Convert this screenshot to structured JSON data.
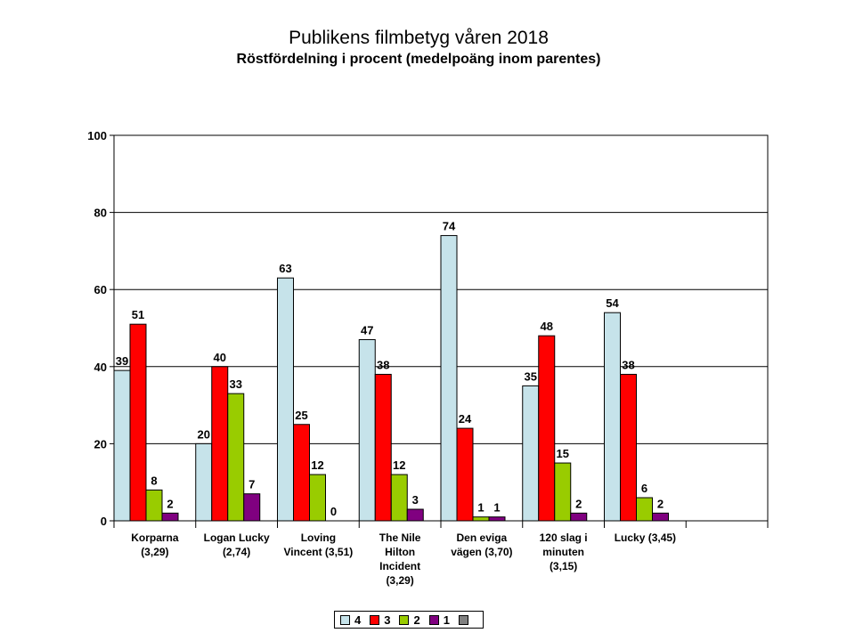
{
  "chart_data": {
    "type": "bar",
    "title": "Publikens filmbetyg våren 2018",
    "subtitle": "Röstfördelning i procent (medelpoäng inom parentes)",
    "categories": [
      [
        "Korparna",
        "(3,29)"
      ],
      [
        "Logan Lucky",
        "(2,74)"
      ],
      [
        "Loving",
        "Vincent (3,51)"
      ],
      [
        "The Nile",
        "Hilton",
        "Incident",
        "(3,29)"
      ],
      [
        "Den eviga",
        "vägen (3,70)"
      ],
      [
        "120 slag i",
        "minuten",
        "(3,15)"
      ],
      [
        "Lucky (3,45)"
      ]
    ],
    "series": [
      {
        "name": "4",
        "color": "#C6E3EA",
        "values": [
          39,
          20,
          63,
          47,
          74,
          35,
          54
        ]
      },
      {
        "name": "3",
        "color": "#FF0000",
        "values": [
          51,
          40,
          25,
          38,
          24,
          48,
          38
        ]
      },
      {
        "name": "2",
        "color": "#99CC00",
        "values": [
          8,
          33,
          12,
          12,
          1,
          15,
          6
        ]
      },
      {
        "name": "1",
        "color": "#800080",
        "values": [
          2,
          7,
          0,
          3,
          1,
          2,
          2
        ]
      },
      {
        "name": "",
        "color": "#808080",
        "values": [
          null,
          null,
          null,
          null,
          null,
          null,
          null
        ]
      }
    ],
    "ylim": [
      0,
      100
    ],
    "yticks": [
      "0",
      "20",
      "40",
      "60",
      "80",
      "100"
    ],
    "extra_empty_slots": 1,
    "grid": true,
    "legend_position": "bottom"
  }
}
